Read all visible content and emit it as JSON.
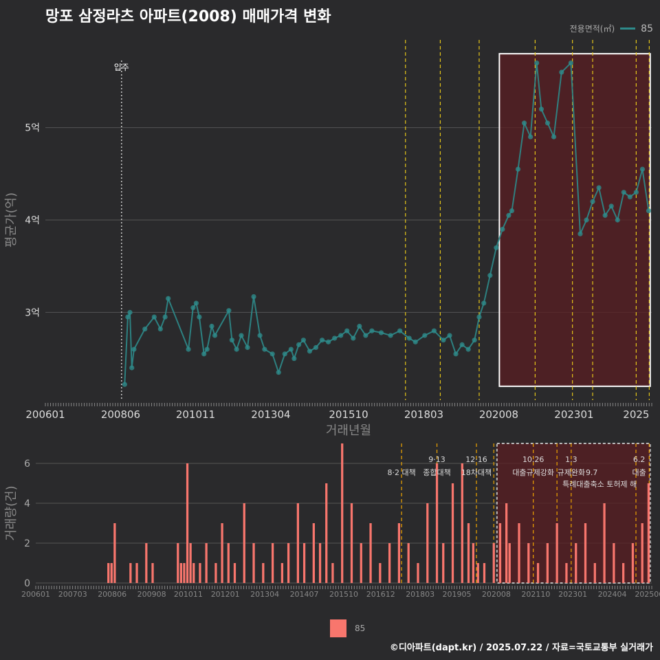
{
  "title": "망포 삼정라츠 아파트(2008) 매매가격 변화",
  "footer": "©디아파트(dapt.kr) / 2025.07.22 / 자료=국토교통부 실거래가",
  "legend_top": {
    "label": "전용면적(㎡)",
    "value": "85"
  },
  "legend_bottom": {
    "value": "85"
  },
  "colors": {
    "background": "#2a2a2c",
    "price_line": "#2e8b8b",
    "volume_bar": "#f8766d",
    "policy_line": "#e6c619",
    "highlight_fill": "#5a1e22",
    "grid": "#555555"
  },
  "chart_data": [
    {
      "type": "line",
      "title": "매매가격 변화",
      "xlabel": "거래년월",
      "ylabel": "평균가(억)",
      "xlim": [
        2006.0,
        2025.5
      ],
      "ylim": [
        2.05,
        5.95
      ],
      "x_ticks": [
        {
          "x": 2006.0,
          "label": "200601"
        },
        {
          "x": 2008.42,
          "label": "200806"
        },
        {
          "x": 2010.83,
          "label": "201011"
        },
        {
          "x": 2013.25,
          "label": "201304"
        },
        {
          "x": 2015.75,
          "label": "201510"
        },
        {
          "x": 2018.17,
          "label": "201803"
        },
        {
          "x": 2020.58,
          "label": "202008"
        },
        {
          "x": 2023.0,
          "label": "202301"
        },
        {
          "x": 2025.0,
          "label": "2025"
        }
      ],
      "y_ticks": [
        {
          "y": 3,
          "label": "3억"
        },
        {
          "y": 4,
          "label": "4억"
        },
        {
          "y": 5,
          "label": "5억"
        }
      ],
      "annotation": {
        "x": 2008.45,
        "label": "입주"
      },
      "highlight": {
        "x_start": 2020.6,
        "x_end": 2025.45,
        "y_low": 2.2,
        "y_high": 5.8
      },
      "policy_lines": [
        2017.58,
        2018.7,
        2019.95,
        2021.75,
        2022.95,
        2023.6,
        2025.0,
        2025.42
      ],
      "series": [
        {
          "name": "85",
          "x": [
            2008.55,
            2008.65,
            2008.72,
            2008.78,
            2008.85,
            2009.2,
            2009.5,
            2009.7,
            2009.85,
            2009.95,
            2010.6,
            2010.75,
            2010.85,
            2010.95,
            2011.1,
            2011.2,
            2011.35,
            2011.45,
            2011.9,
            2012.0,
            2012.15,
            2012.3,
            2012.5,
            2012.7,
            2012.9,
            2013.05,
            2013.3,
            2013.5,
            2013.7,
            2013.9,
            2014.0,
            2014.15,
            2014.3,
            2014.5,
            2014.7,
            2014.9,
            2015.1,
            2015.3,
            2015.5,
            2015.7,
            2015.9,
            2016.1,
            2016.3,
            2016.5,
            2016.8,
            2017.1,
            2017.4,
            2017.7,
            2017.9,
            2018.2,
            2018.5,
            2018.8,
            2019.0,
            2019.2,
            2019.4,
            2019.6,
            2019.8,
            2019.95,
            2020.1,
            2020.3,
            2020.5,
            2020.7,
            2020.9,
            2021.0,
            2021.2,
            2021.4,
            2021.6,
            2021.8,
            2021.95,
            2022.15,
            2022.35,
            2022.6,
            2022.9,
            2023.2,
            2023.4,
            2023.6,
            2023.8,
            2024.0,
            2024.2,
            2024.4,
            2024.6,
            2024.8,
            2025.0,
            2025.2,
            2025.4
          ],
          "y": [
            2.22,
            2.95,
            3.0,
            2.4,
            2.6,
            2.82,
            2.95,
            2.82,
            2.95,
            3.15,
            2.6,
            3.05,
            3.1,
            2.95,
            2.55,
            2.6,
            2.85,
            2.75,
            3.02,
            2.7,
            2.6,
            2.75,
            2.62,
            3.17,
            2.75,
            2.6,
            2.55,
            2.35,
            2.55,
            2.6,
            2.5,
            2.65,
            2.7,
            2.58,
            2.62,
            2.7,
            2.68,
            2.72,
            2.75,
            2.8,
            2.72,
            2.85,
            2.75,
            2.8,
            2.78,
            2.75,
            2.8,
            2.72,
            2.68,
            2.75,
            2.8,
            2.7,
            2.75,
            2.55,
            2.65,
            2.6,
            2.7,
            2.95,
            3.1,
            3.4,
            3.7,
            3.9,
            4.05,
            4.1,
            4.55,
            5.05,
            4.9,
            5.7,
            5.2,
            5.05,
            4.9,
            5.6,
            5.7,
            3.85,
            4.0,
            4.2,
            4.35,
            4.05,
            4.15,
            4.0,
            4.3,
            4.25,
            4.3,
            4.55,
            4.1
          ]
        }
      ]
    },
    {
      "type": "bar",
      "title": "거래량",
      "xlabel": "",
      "ylabel": "거래량(건)",
      "xlim": [
        2006.0,
        2025.5
      ],
      "ylim": [
        0,
        7
      ],
      "x_ticks": [
        {
          "x": 2006.0,
          "label": "200601"
        },
        {
          "x": 2007.17,
          "label": "200703"
        },
        {
          "x": 2008.42,
          "label": "200806"
        },
        {
          "x": 2009.67,
          "label": "200908"
        },
        {
          "x": 2010.83,
          "label": "201011"
        },
        {
          "x": 2012.0,
          "label": "201201"
        },
        {
          "x": 2013.25,
          "label": "201304"
        },
        {
          "x": 2014.5,
          "label": "201407"
        },
        {
          "x": 2015.75,
          "label": "201510"
        },
        {
          "x": 2016.92,
          "label": "201612"
        },
        {
          "x": 2018.17,
          "label": "201803"
        },
        {
          "x": 2019.33,
          "label": "201905"
        },
        {
          "x": 2020.58,
          "label": "202008"
        },
        {
          "x": 2021.83,
          "label": "202110"
        },
        {
          "x": 2023.0,
          "label": "202301"
        },
        {
          "x": 2024.25,
          "label": "202404"
        },
        {
          "x": 2025.42,
          "label": "202506"
        }
      ],
      "y_ticks": [
        {
          "y": 0,
          "label": "0"
        },
        {
          "y": 2,
          "label": "2"
        },
        {
          "y": 4,
          "label": "4"
        },
        {
          "y": 6,
          "label": "6"
        }
      ],
      "highlight": {
        "x_start": 2020.6,
        "x_end": 2025.45,
        "y_low": 0,
        "y_high": 7
      },
      "policy_lines": [
        2017.58,
        2018.7,
        2019.95,
        2020.5,
        2021.75,
        2022.5,
        2022.95,
        2025.0,
        2025.42
      ],
      "policy_labels": [
        {
          "x": 2017.58,
          "line1": "",
          "line2": "8·2 대책"
        },
        {
          "x": 2018.7,
          "line1": "9·13",
          "line2": "종합대책"
        },
        {
          "x": 2019.95,
          "line1": "12·16",
          "line2": "18차대책"
        },
        {
          "x": 2021.75,
          "line1": "10.26",
          "line2": "대출규제강화"
        },
        {
          "x": 2022.95,
          "line1": "1.3",
          "line2": "규제완화"
        },
        {
          "x": 2023.6,
          "line1": "",
          "line2": "9.7"
        },
        {
          "x": 2025.1,
          "line1": "6.2",
          "line2": "대출"
        }
      ],
      "extra_label": {
        "x": 2023.85,
        "label": "특례대출축소 토허제 해"
      },
      "series": [
        {
          "name": "85",
          "x": [
            2008.3,
            2008.4,
            2008.5,
            2009.0,
            2009.2,
            2009.5,
            2009.7,
            2010.5,
            2010.6,
            2010.7,
            2010.8,
            2010.9,
            2011.0,
            2011.2,
            2011.4,
            2011.7,
            2011.9,
            2012.1,
            2012.3,
            2012.6,
            2012.9,
            2013.2,
            2013.5,
            2013.8,
            2014.0,
            2014.3,
            2014.5,
            2014.8,
            2015.0,
            2015.2,
            2015.4,
            2015.7,
            2016.0,
            2016.3,
            2016.6,
            2016.9,
            2017.2,
            2017.5,
            2017.8,
            2018.1,
            2018.4,
            2018.7,
            2018.9,
            2019.2,
            2019.5,
            2019.7,
            2019.85,
            2020.0,
            2020.2,
            2020.5,
            2020.7,
            2020.9,
            2021.0,
            2021.3,
            2021.6,
            2021.9,
            2022.2,
            2022.5,
            2022.8,
            2023.1,
            2023.4,
            2023.7,
            2024.0,
            2024.3,
            2024.6,
            2024.9,
            2025.2,
            2025.4
          ],
          "y": [
            1,
            1,
            3,
            1,
            1,
            2,
            1,
            2,
            1,
            1,
            6,
            2,
            1,
            1,
            2,
            1,
            3,
            2,
            1,
            4,
            2,
            1,
            2,
            1,
            2,
            4,
            2,
            3,
            2,
            5,
            1,
            7,
            4,
            2,
            3,
            1,
            2,
            3,
            2,
            1,
            4,
            6,
            2,
            5,
            6,
            3,
            2,
            1,
            1,
            2,
            3,
            4,
            2,
            3,
            2,
            1,
            2,
            3,
            1,
            2,
            3,
            1,
            4,
            2,
            1,
            2,
            3,
            5
          ]
        }
      ]
    }
  ]
}
